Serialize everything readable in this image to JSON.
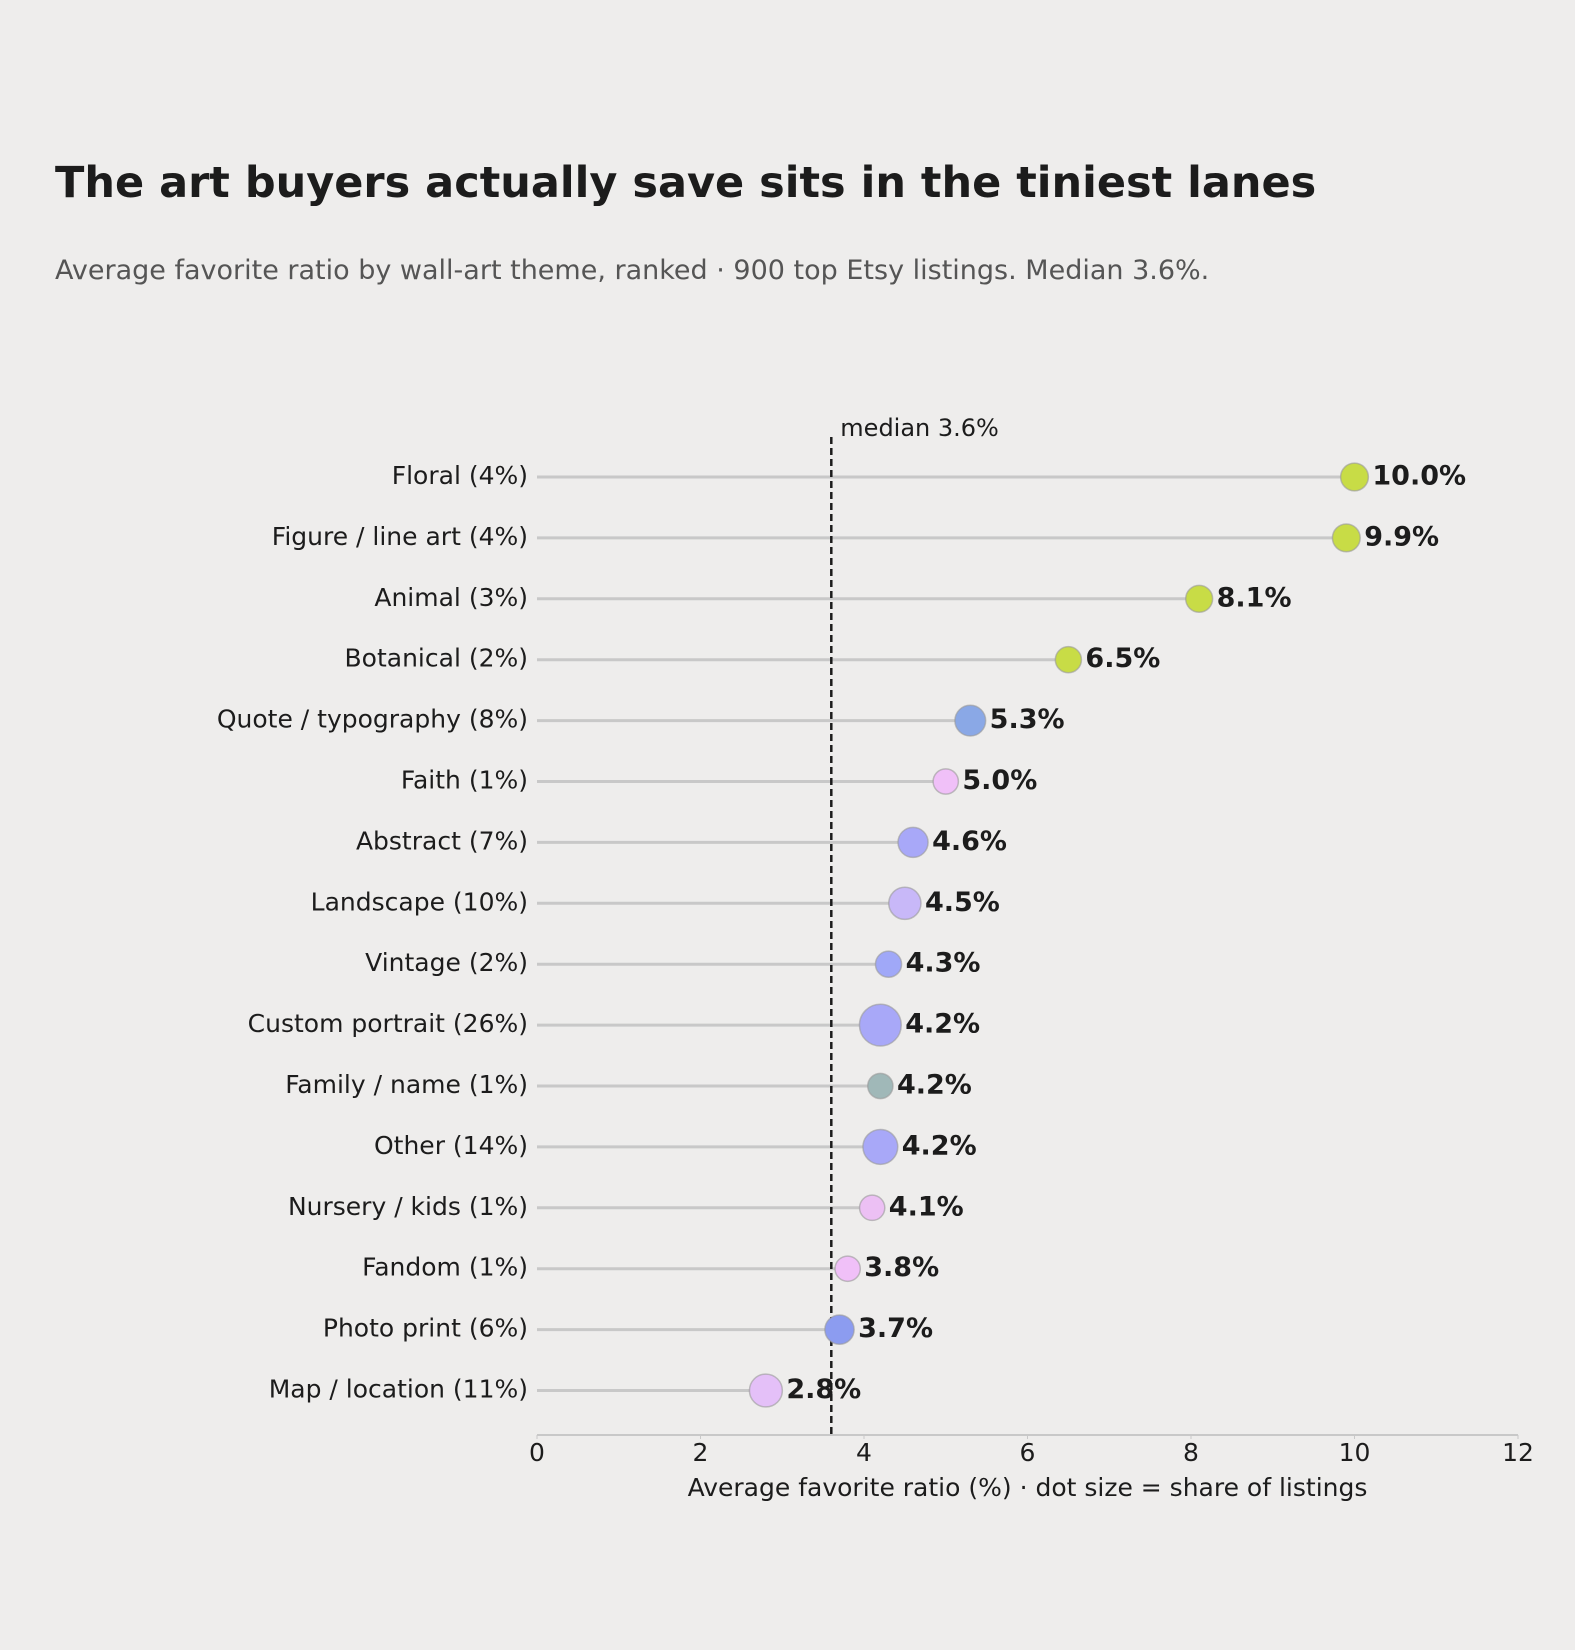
{
  "chart_data": {
    "type": "lollipop",
    "title": "The art buyers actually save sits in the tiniest lanes",
    "subtitle": "Average favorite ratio by wall-art theme, ranked · 900 top Etsy listings. Median 3.6%.",
    "xlabel": "Average favorite ratio (%)  ·  dot size = share of listings",
    "categories": [
      "Floral  (4%)",
      "Figure / line art  (4%)",
      "Animal  (3%)",
      "Botanical  (2%)",
      "Quote / typography  (8%)",
      "Faith  (1%)",
      "Abstract  (7%)",
      "Landscape  (10%)",
      "Vintage  (2%)",
      "Custom portrait  (26%)",
      "Family / name  (1%)",
      "Other  (14%)",
      "Nursery / kids  (1%)",
      "Fandom  (1%)",
      "Photo print  (6%)",
      "Map / location  (11%)"
    ],
    "values": [
      10.0,
      9.9,
      8.1,
      6.5,
      5.3,
      5.0,
      4.6,
      4.5,
      4.3,
      4.2,
      4.2,
      4.2,
      4.1,
      3.8,
      3.7,
      2.8
    ],
    "value_labels": [
      "10.0%",
      "9.9%",
      "8.1%",
      "6.5%",
      "5.3%",
      "5.0%",
      "4.6%",
      "4.5%",
      "4.3%",
      "4.2%",
      "4.2%",
      "4.2%",
      "4.1%",
      "3.8%",
      "3.7%",
      "2.8%"
    ],
    "sizes": [
      4,
      4,
      3,
      2,
      8,
      1,
      7,
      10,
      2,
      26,
      1,
      14,
      1,
      1,
      6,
      11
    ],
    "colors": [
      "#c8dc46",
      "#c8dc46",
      "#c8dc46",
      "#c8dc46",
      "#8aa8e6",
      "#f0c0f8",
      "#a8a8f8",
      "#c8b8f8",
      "#a0a8f8",
      "#a8a8f8",
      "#a0b8b8",
      "#a8a8f8",
      "#ecc0f4",
      "#f0c0f8",
      "#8c9cf0",
      "#e4c0f8"
    ],
    "median": 3.6,
    "median_label": "median 3.6%",
    "xlim": [
      0,
      12
    ],
    "xticks": [
      0,
      2,
      4,
      6,
      8,
      10,
      12
    ]
  }
}
